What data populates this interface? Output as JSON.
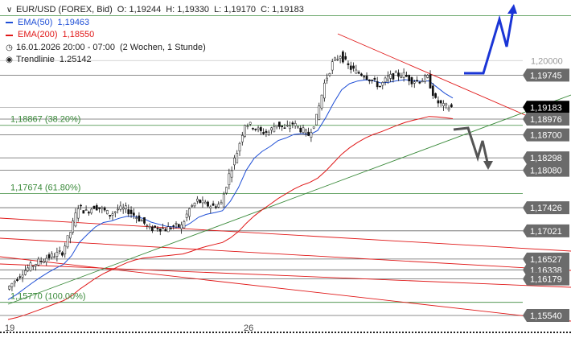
{
  "header": {
    "symbol": "EUR/USD (FOREX, Bid)",
    "open": "O: 1,19244",
    "high": "H: 1,19330",
    "low": "L: 1,19170",
    "close": "C: 1,19183",
    "ema50_label": "EMA(50)",
    "ema50_value": "1,19463",
    "ema200_label": "EMA(200)",
    "ema200_value": "1,18550",
    "date_text": "16.01.2026 20:00 - 07:00",
    "period_text": "(2 Wochen, 1 Stunde)",
    "trendline_label": "Trendlinie",
    "trendline_value": "1.25142",
    "chevron_icon": "chevron-down-icon",
    "clock_icon": "clock-icon",
    "target_icon": "target-icon"
  },
  "colors": {
    "ema50": "#1f4fd6",
    "ema200": "#e01818",
    "fib": "#3a8a3a",
    "up_arrow": "#1a35d6",
    "down_arrow": "#555555",
    "current_tag": "#000000",
    "tag": "#6b6b6b"
  },
  "chart_data": {
    "type": "candlestick",
    "title": "EUR/USD (FOREX, Bid)",
    "ylim": [
      1.1535,
      1.2029
    ],
    "x_ticks": [
      "19",
      "26"
    ],
    "price_levels": [
      {
        "value": 1.2,
        "label": "1,20000",
        "style": "faint"
      },
      {
        "value": 1.19745,
        "label": "1,19745",
        "style": "tag"
      },
      {
        "value": 1.19183,
        "label": "1,19183",
        "style": "current"
      },
      {
        "value": 1.18976,
        "label": "1,18976",
        "style": "tag"
      },
      {
        "value": 1.187,
        "label": "1,18700",
        "style": "tag"
      },
      {
        "value": 1.18298,
        "label": "1,18298",
        "style": "tag"
      },
      {
        "value": 1.1808,
        "label": "1,18080",
        "style": "tag"
      },
      {
        "value": 1.17426,
        "label": "1,17426",
        "style": "tag"
      },
      {
        "value": 1.17021,
        "label": "1,17021",
        "style": "tag"
      },
      {
        "value": 1.16527,
        "label": "1,16527",
        "style": "tag"
      },
      {
        "value": 1.16338,
        "label": "1,16338",
        "style": "tag"
      },
      {
        "value": 1.16179,
        "label": "1,16179",
        "style": "tag"
      },
      {
        "value": 1.1554,
        "label": "1,15540",
        "style": "tag"
      }
    ],
    "fib_levels": [
      {
        "value": 1.18867,
        "label": "1,18867 (38.20%)"
      },
      {
        "value": 1.17674,
        "label": "1,17674 (61.80%)"
      },
      {
        "value": 1.1577,
        "label": "1,15770 (100.00%)"
      }
    ],
    "price_series": [
      1.16,
      1.1615,
      1.163,
      1.164,
      1.1648,
      1.1655,
      1.166,
      1.1665,
      1.17,
      1.1745,
      1.1735,
      1.1745,
      1.174,
      1.173,
      1.174,
      1.174,
      1.173,
      1.172,
      1.1705,
      1.1708,
      1.1705,
      1.171,
      1.171,
      1.174,
      1.1755,
      1.1748,
      1.1745,
      1.175,
      1.18,
      1.184,
      1.189,
      1.1885,
      1.1875,
      1.1875,
      1.189,
      1.188,
      1.189,
      1.188,
      1.187,
      1.19,
      1.196,
      1.1995,
      1.201,
      1.199,
      1.198,
      1.1975,
      1.1965,
      1.1955,
      1.197,
      1.1975,
      1.1975,
      1.1965,
      1.1965,
      1.197,
      1.193,
      1.192,
      1.1918
    ]
  }
}
